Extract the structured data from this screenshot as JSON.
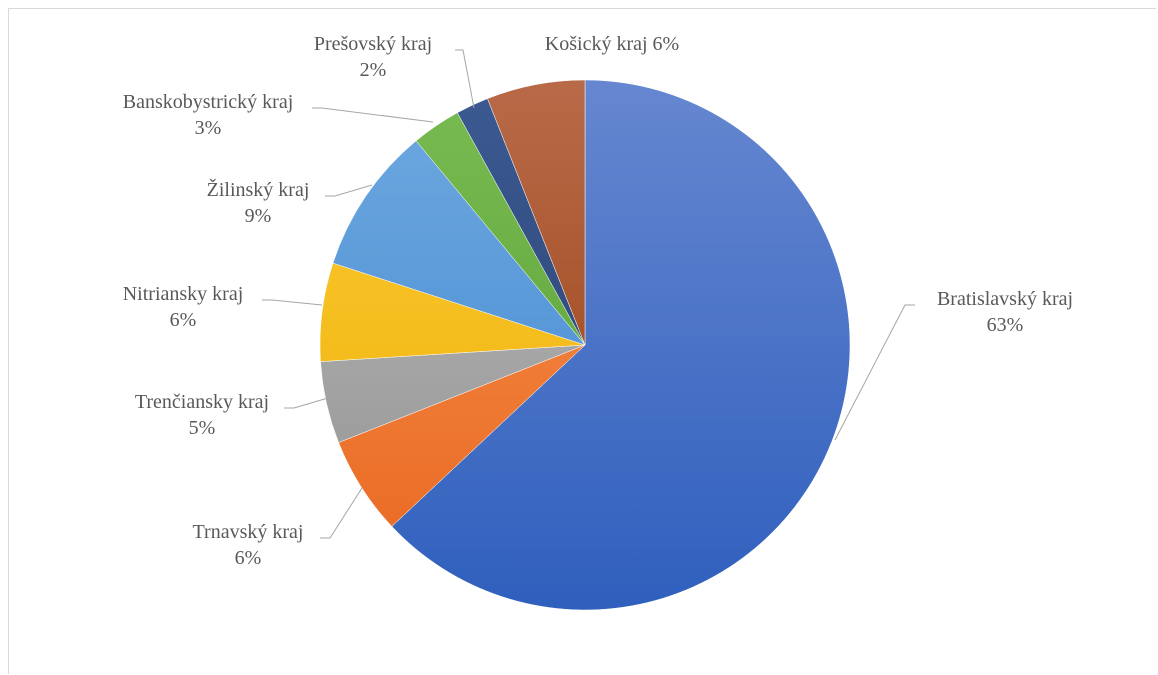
{
  "chart_data": {
    "type": "pie",
    "title": "",
    "start_angle_deg": 0,
    "direction": "clockwise",
    "legend": "none",
    "slices": [
      {
        "label": "Bratislavský kraj",
        "value": 63,
        "display": "63%",
        "color_light": "#6687D0",
        "color_dark": "#2F5FBD"
      },
      {
        "label": "Trnavský kraj",
        "value": 6,
        "display": "6%",
        "color_light": "#F79452",
        "color_dark": "#E8661E"
      },
      {
        "label": "Trenčiansky kraj",
        "value": 5,
        "display": "5%",
        "color_light": "#BDBDBD",
        "color_dark": "#8F8F8F"
      },
      {
        "label": "Nitriansky kraj",
        "value": 6,
        "display": "6%",
        "color_light": "#FFCC3A",
        "color_dark": "#E9AE00"
      },
      {
        "label": "Žilinský kraj",
        "value": 9,
        "display": "9%",
        "color_light": "#6FA9E0",
        "color_dark": "#3F86CF"
      },
      {
        "label": "Banskobystrický kraj",
        "value": 3,
        "display": "3%",
        "color_light": "#79BB52",
        "color_dark": "#549E33"
      },
      {
        "label": "Prešovský kraj",
        "value": 2,
        "display": "2%",
        "color_light": "#3C5A92",
        "color_dark": "#263E6D"
      },
      {
        "label": "Košický kraj",
        "value": 6,
        "display": "6%",
        "color_light": "#B86A48",
        "color_dark": "#963D0E"
      }
    ]
  }
}
